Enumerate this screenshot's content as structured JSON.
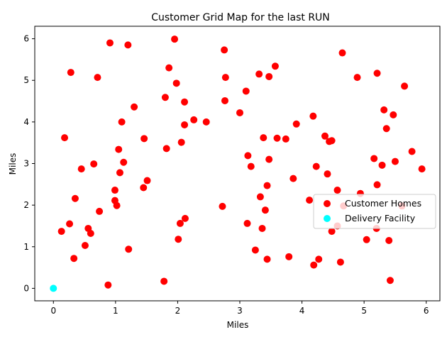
{
  "chart_data": {
    "type": "scatter",
    "title": "Customer Grid Map for the last RUN",
    "xlabel": "Miles",
    "ylabel": "Miles",
    "xlim": [
      -0.3,
      6.22
    ],
    "ylim": [
      -0.3,
      6.3
    ],
    "xticks": [
      0,
      1,
      2,
      3,
      4,
      5,
      6
    ],
    "yticks": [
      0,
      1,
      2,
      3,
      4,
      5,
      6
    ],
    "grid": false,
    "legend_position": "center-right",
    "series": [
      {
        "name": "Customer Homes",
        "color": "#ff0000",
        "points": [
          [
            0.91,
            5.9
          ],
          [
            1.2,
            5.85
          ],
          [
            1.95,
            5.99
          ],
          [
            0.28,
            5.19
          ],
          [
            0.71,
            5.07
          ],
          [
            1.86,
            5.3
          ],
          [
            1.98,
            4.93
          ],
          [
            1.3,
            4.36
          ],
          [
            1.8,
            4.59
          ],
          [
            2.11,
            4.48
          ],
          [
            0.18,
            3.62
          ],
          [
            1.1,
            4.0
          ],
          [
            2.26,
            4.05
          ],
          [
            2.11,
            3.93
          ],
          [
            2.46,
            4.0
          ],
          [
            1.46,
            3.6
          ],
          [
            1.05,
            3.34
          ],
          [
            1.82,
            3.36
          ],
          [
            2.06,
            3.51
          ],
          [
            1.13,
            3.03
          ],
          [
            0.65,
            2.99
          ],
          [
            0.45,
            2.87
          ],
          [
            1.07,
            2.78
          ],
          [
            0.99,
            2.36
          ],
          [
            1.51,
            2.59
          ],
          [
            1.45,
            2.42
          ],
          [
            0.35,
            2.16
          ],
          [
            0.99,
            2.11
          ],
          [
            1.02,
            1.99
          ],
          [
            0.74,
            1.85
          ],
          [
            0.26,
            1.55
          ],
          [
            0.13,
            1.37
          ],
          [
            0.56,
            1.44
          ],
          [
            0.6,
            1.32
          ],
          [
            0.51,
            1.03
          ],
          [
            0.33,
            0.72
          ],
          [
            1.21,
            0.94
          ],
          [
            2.12,
            1.68
          ],
          [
            2.04,
            1.56
          ],
          [
            2.01,
            1.18
          ],
          [
            0.88,
            0.08
          ],
          [
            1.78,
            0.17
          ],
          [
            2.75,
            5.73
          ],
          [
            2.77,
            5.07
          ],
          [
            3.31,
            5.15
          ],
          [
            3.57,
            5.34
          ],
          [
            3.47,
            5.09
          ],
          [
            3.1,
            4.74
          ],
          [
            2.76,
            4.51
          ],
          [
            3.0,
            4.22
          ],
          [
            3.38,
            3.62
          ],
          [
            3.6,
            3.61
          ],
          [
            3.74,
            3.59
          ],
          [
            3.91,
            3.95
          ],
          [
            4.18,
            4.14
          ],
          [
            4.37,
            3.66
          ],
          [
            4.44,
            3.53
          ],
          [
            4.48,
            3.55
          ],
          [
            3.13,
            3.19
          ],
          [
            3.18,
            2.93
          ],
          [
            3.47,
            3.1
          ],
          [
            3.44,
            2.47
          ],
          [
            3.33,
            2.2
          ],
          [
            3.86,
            2.64
          ],
          [
            4.23,
            2.93
          ],
          [
            4.41,
            2.75
          ],
          [
            4.12,
            2.12
          ],
          [
            4.57,
            2.36
          ],
          [
            2.72,
            1.97
          ],
          [
            3.41,
            1.88
          ],
          [
            3.12,
            1.56
          ],
          [
            3.36,
            1.44
          ],
          [
            3.25,
            0.92
          ],
          [
            3.44,
            0.7
          ],
          [
            3.79,
            0.76
          ],
          [
            4.27,
            0.7
          ],
          [
            4.19,
            0.56
          ],
          [
            4.62,
            0.63
          ],
          [
            4.48,
            1.37
          ],
          [
            4.57,
            1.5
          ],
          [
            4.65,
            5.66
          ],
          [
            4.89,
            5.07
          ],
          [
            5.21,
            5.17
          ],
          [
            5.65,
            4.86
          ],
          [
            5.32,
            4.29
          ],
          [
            5.47,
            4.17
          ],
          [
            5.36,
            3.84
          ],
          [
            5.77,
            3.29
          ],
          [
            5.16,
            3.12
          ],
          [
            5.29,
            2.96
          ],
          [
            5.5,
            3.05
          ],
          [
            5.93,
            2.87
          ],
          [
            5.21,
            2.49
          ],
          [
            4.94,
            2.28
          ],
          [
            4.67,
            1.98
          ],
          [
            5.2,
            1.44
          ],
          [
            5.04,
            1.17
          ],
          [
            5.61,
            1.98
          ],
          [
            5.4,
            1.15
          ],
          [
            5.42,
            0.19
          ]
        ]
      },
      {
        "name": "Delivery Facility",
        "color": "#00ffff",
        "points": [
          [
            0,
            0
          ]
        ]
      }
    ]
  }
}
